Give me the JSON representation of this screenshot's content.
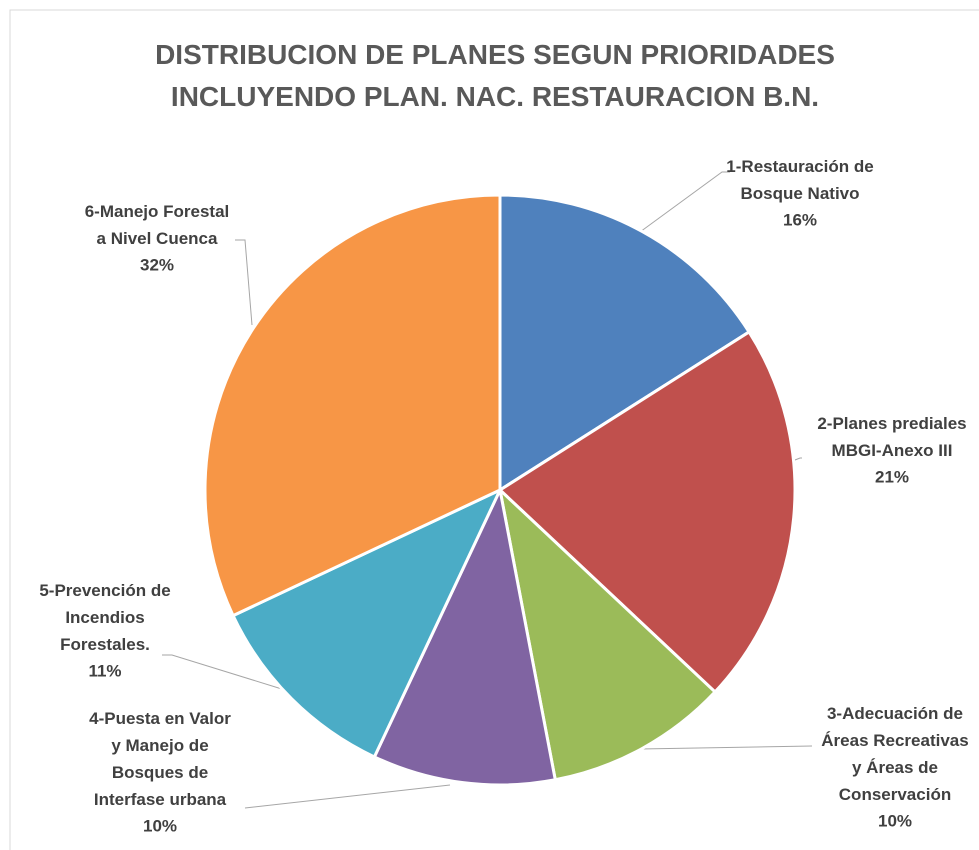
{
  "chart_data": {
    "type": "pie",
    "title": "DISTRIBUCION DE PLANES SEGUN PRIORIDADES\nINCLUYENDO PLAN. NAC. RESTAURACION B.N.",
    "categories": [
      "1-Restauración de\nBosque Nativo",
      "2-Planes prediales\nMBGI-Anexo III",
      "3-Adecuación de\nÁreas Recreativas\ny Áreas de\nConservación",
      "4-Puesta en Valor\ny Manejo de\nBosques de\nInterfase urbana",
      "5-Prevención de\nIncendios\nForestales.",
      "6-Manejo Forestal\na Nivel Cuenca"
    ],
    "values": [
      16,
      21,
      10,
      10,
      11,
      32
    ],
    "value_labels": [
      "16%",
      "21%",
      "10%",
      "10%",
      "11%",
      "32%"
    ],
    "colors": [
      "#4f81bd",
      "#c0504d",
      "#9bbb59",
      "#8064a2",
      "#4bacc6",
      "#f79646"
    ]
  }
}
